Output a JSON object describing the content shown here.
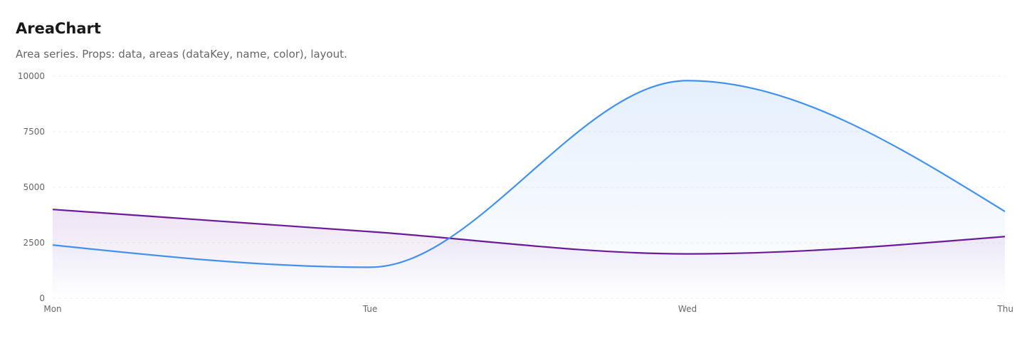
{
  "chart_data": {
    "type": "area",
    "title": "AreaChart",
    "subtitle": "Area series. Props: data, areas (dataKey, name, color), layout.",
    "categories": [
      "Mon",
      "Tue",
      "Wed",
      "Thu"
    ],
    "series": [
      {
        "color": "#6a1b9a",
        "values": [
          4000,
          3000,
          2000,
          2780
        ]
      },
      {
        "color": "#4391ee",
        "values": [
          2400,
          1398,
          9800,
          3908
        ]
      }
    ],
    "ylim": [
      0,
      10000
    ],
    "yticks": [
      0,
      2500,
      5000,
      7500,
      10000
    ],
    "grid": true
  }
}
